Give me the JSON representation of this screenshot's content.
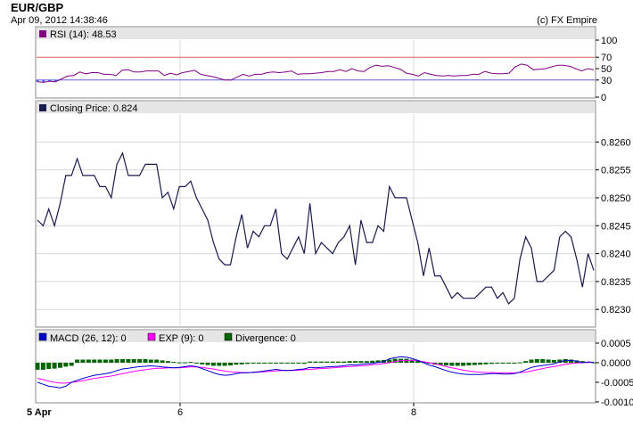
{
  "header": {
    "title": "EUR/GBP",
    "timestamp": "Apr 09, 2012 14:38:46",
    "copyright": "(c) FX Empire"
  },
  "colors": {
    "rsi": "#800080",
    "rsi_fill": "#4466ff",
    "rsi_upper": "#e06060",
    "rsi_lower": "#6060e0",
    "price": "#1a1a4e",
    "macd": "#0000cc",
    "exp": "#ff00ff",
    "divergence": "#006400",
    "panel_bg": "#e5e5e5",
    "grid": "#d8d8d8"
  },
  "chart_data": [
    {
      "type": "line",
      "panel": "rsi",
      "legend": "RSI (14): 48.53",
      "ylim": [
        0,
        100
      ],
      "yticks": [
        "100",
        "70",
        "50",
        "30",
        "0"
      ],
      "ytick_values": [
        100,
        70,
        50,
        30,
        0
      ],
      "levels": [
        70,
        30
      ],
      "series": [
        {
          "values": [
            27,
            26,
            28,
            27,
            32,
            37,
            38,
            44,
            41,
            43,
            43,
            40,
            40,
            38,
            47,
            48,
            44,
            44,
            46,
            46,
            46,
            38,
            42,
            39,
            43,
            45,
            47,
            40,
            38,
            36,
            33,
            30,
            30,
            35,
            40,
            37,
            40,
            40,
            43,
            44,
            43,
            44,
            46,
            40,
            41,
            41,
            42,
            43,
            45,
            45,
            48,
            45,
            50,
            46,
            45,
            52,
            56,
            54,
            55,
            52,
            49,
            42,
            40,
            37,
            43,
            40,
            38,
            37,
            38,
            37,
            38,
            38,
            40,
            40,
            45,
            42,
            41,
            41,
            42,
            53,
            58,
            56,
            48,
            49,
            50,
            53,
            56,
            56,
            54,
            50,
            46,
            50,
            48
          ]
        }
      ]
    },
    {
      "type": "line",
      "panel": "price",
      "legend": "Closing Price: 0.824",
      "ylim": [
        0.8227,
        0.8265
      ],
      "yticks": [
        "0.8260",
        "0.8255",
        "0.8250",
        "0.8245",
        "0.8240",
        "0.8235",
        "0.8230"
      ],
      "ytick_values": [
        0.826,
        0.8255,
        0.825,
        0.8245,
        0.824,
        0.8235,
        0.823
      ],
      "x_labels": [
        "5 Apr",
        "6",
        "8"
      ],
      "series": [
        {
          "values": [
            0.8246,
            0.8245,
            0.8248,
            0.8245,
            0.8249,
            0.8254,
            0.8254,
            0.8257,
            0.8254,
            0.8254,
            0.8254,
            0.8252,
            0.8252,
            0.825,
            0.8256,
            0.8258,
            0.8254,
            0.8254,
            0.8254,
            0.8256,
            0.8256,
            0.8256,
            0.825,
            0.8251,
            0.8248,
            0.8252,
            0.8252,
            0.8253,
            0.825,
            0.8248,
            0.8246,
            0.8242,
            0.8239,
            0.8238,
            0.8238,
            0.8243,
            0.8247,
            0.8241,
            0.8244,
            0.8243,
            0.8245,
            0.8245,
            0.8248,
            0.824,
            0.8239,
            0.8241,
            0.8243,
            0.824,
            0.8249,
            0.824,
            0.8242,
            0.8241,
            0.824,
            0.8242,
            0.8243,
            0.8245,
            0.8238,
            0.8246,
            0.8242,
            0.8242,
            0.8245,
            0.8244,
            0.8252,
            0.825,
            0.825,
            0.825,
            0.8246,
            0.8242,
            0.8236,
            0.8241,
            0.8236,
            0.8236,
            0.8234,
            0.8232,
            0.8233,
            0.8232,
            0.8232,
            0.8232,
            0.8233,
            0.8234,
            0.8234,
            0.8232,
            0.8233,
            0.8231,
            0.8232,
            0.8239,
            0.8243,
            0.8241,
            0.8235,
            0.8235,
            0.8236,
            0.8237,
            0.8243,
            0.8244,
            0.8243,
            0.8239,
            0.8234,
            0.824,
            0.8237
          ]
        }
      ]
    },
    {
      "type": "line",
      "panel": "macd",
      "legend": [
        {
          "label": "MACD (26, 12): 0",
          "color": "#0000cc"
        },
        {
          "label": "EXP (9): 0",
          "color": "#ff00ff"
        },
        {
          "label": "Divergence: 0",
          "color": "#006400"
        }
      ],
      "ylim": [
        -0.001,
        0.0005
      ],
      "yticks": [
        "0.0005",
        "0.0000",
        "-0.0005",
        "-0.0010"
      ],
      "ytick_values": [
        0.0005,
        0,
        -0.0005,
        -0.001
      ],
      "series": [
        {
          "name": "MACD (26, 12)",
          "values": [
            -0.0005,
            -0.00055,
            -0.0006,
            -0.00062,
            -0.00064,
            -0.0006,
            -0.0005,
            -0.00045,
            -0.0004,
            -0.00036,
            -0.00032,
            -0.0003,
            -0.00028,
            -0.00025,
            -0.0002,
            -0.00016,
            -0.00014,
            -0.00012,
            -0.0001,
            -9e-05,
            -8e-05,
            -9e-05,
            -0.00011,
            -0.00012,
            -0.00013,
            -0.00012,
            -0.0001,
            -8e-05,
            -0.0001,
            -0.00015,
            -0.0002,
            -0.00026,
            -0.0003,
            -0.00032,
            -0.00031,
            -0.00028,
            -0.00026,
            -0.00026,
            -0.00024,
            -0.00023,
            -0.00021,
            -0.00019,
            -0.00017,
            -0.00019,
            -0.0002,
            -0.00019,
            -0.00017,
            -0.00016,
            -0.00012,
            -0.00013,
            -0.00012,
            -0.00011,
            -0.0001,
            -9e-05,
            -8e-05,
            -5e-05,
            -6e-05,
            -4e-05,
            -3e-05,
            -2e-05,
            1e-05,
            3e-05,
            0.0001,
            0.00013,
            0.00015,
            0.00014,
            0.00011,
            6e-05,
            0,
            -6e-05,
            -0.0001,
            -0.00015,
            -0.0002,
            -0.00024,
            -0.00027,
            -0.00029,
            -0.0003,
            -0.0003,
            -0.0003,
            -0.00029,
            -0.00028,
            -0.00028,
            -0.00029,
            -0.00029,
            -0.00028,
            -0.00024,
            -0.00018,
            -0.00012,
            -9e-05,
            -7e-05,
            -5e-05,
            -3e-05,
            2e-05,
            6e-05,
            6e-05,
            4e-05,
            0,
            2e-05,
            1e-05
          ]
        },
        {
          "name": "EXP (9)",
          "values": [
            -0.0004,
            -0.00043,
            -0.00047,
            -0.0005,
            -0.00052,
            -0.00052,
            -0.0005,
            -0.00048,
            -0.00046,
            -0.00043,
            -0.0004,
            -0.00038,
            -0.00036,
            -0.00034,
            -0.00031,
            -0.00028,
            -0.00025,
            -0.00022,
            -0.0002,
            -0.00018,
            -0.00016,
            -0.00014,
            -0.00014,
            -0.00013,
            -0.00013,
            -0.00013,
            -0.00012,
            -0.00011,
            -0.00011,
            -0.00012,
            -0.00014,
            -0.00016,
            -0.00019,
            -0.00021,
            -0.00023,
            -0.00024,
            -0.00025,
            -0.00025,
            -0.00025,
            -0.00024,
            -0.00023,
            -0.00022,
            -0.00021,
            -0.0002,
            -0.0002,
            -0.0002,
            -0.00019,
            -0.00018,
            -0.00017,
            -0.00016,
            -0.00015,
            -0.00014,
            -0.00013,
            -0.00012,
            -0.00011,
            -0.0001,
            -9e-05,
            -8e-05,
            -7e-05,
            -5e-05,
            -4e-05,
            -2e-05,
            0,
            3e-05,
            5e-05,
            6e-05,
            6e-05,
            5e-05,
            3e-05,
            0,
            -3e-05,
            -6e-05,
            -0.0001,
            -0.00013,
            -0.00016,
            -0.00019,
            -0.00021,
            -0.00023,
            -0.00024,
            -0.00025,
            -0.00025,
            -0.00026,
            -0.00026,
            -0.00026,
            -0.00026,
            -0.00025,
            -0.00024,
            -0.00021,
            -0.00018,
            -0.00015,
            -0.00012,
            -0.0001,
            -7e-05,
            -4e-05,
            -2e-05,
            -1e-05,
            0,
            1e-05,
            1e-05
          ]
        },
        {
          "name": "Divergence",
          "type": "bar",
          "values": [
            -0.00018,
            -0.00018,
            -0.00016,
            -0.00015,
            -0.00013,
            -0.0001,
            -8e-05,
            8e-05,
            8e-05,
            8e-05,
            8e-05,
            8e-05,
            8e-05,
            8e-05,
            9e-05,
            9e-05,
            9e-05,
            9e-05,
            9e-05,
            9e-05,
            8e-05,
            8e-05,
            6e-05,
            4e-05,
            2e-05,
            1e-05,
            1e-05,
            2e-05,
            -2e-05,
            -4e-05,
            -6e-05,
            -8e-05,
            -8e-05,
            -8e-05,
            -7e-05,
            -5e-05,
            -4e-05,
            -3e-05,
            -2e-05,
            -2e-05,
            -2e-05,
            -2e-05,
            -2e-05,
            -2e-05,
            -2e-05,
            -2e-05,
            -2e-05,
            -3e-05,
            3e-05,
            3e-05,
            3e-05,
            3e-05,
            3e-05,
            3e-05,
            3e-05,
            4e-05,
            4e-05,
            4e-05,
            4e-05,
            5e-05,
            6e-05,
            7e-05,
            8e-05,
            0.0001,
            0.0001,
            0.0001,
            8e-05,
            6e-05,
            3e-05,
            -2e-05,
            -5e-05,
            -6e-05,
            -7e-05,
            -8e-05,
            -8e-05,
            -8e-05,
            -7e-05,
            -6e-05,
            -5e-05,
            -4e-05,
            -3e-05,
            -2e-05,
            -2e-05,
            -2e-05,
            -2e-05,
            1e-05,
            4e-05,
            8e-05,
            9e-05,
            9e-05,
            8e-05,
            7e-05,
            8e-05,
            9e-05,
            8e-05,
            6e-05,
            4e-05,
            2e-05,
            1e-05
          ]
        }
      ]
    }
  ]
}
